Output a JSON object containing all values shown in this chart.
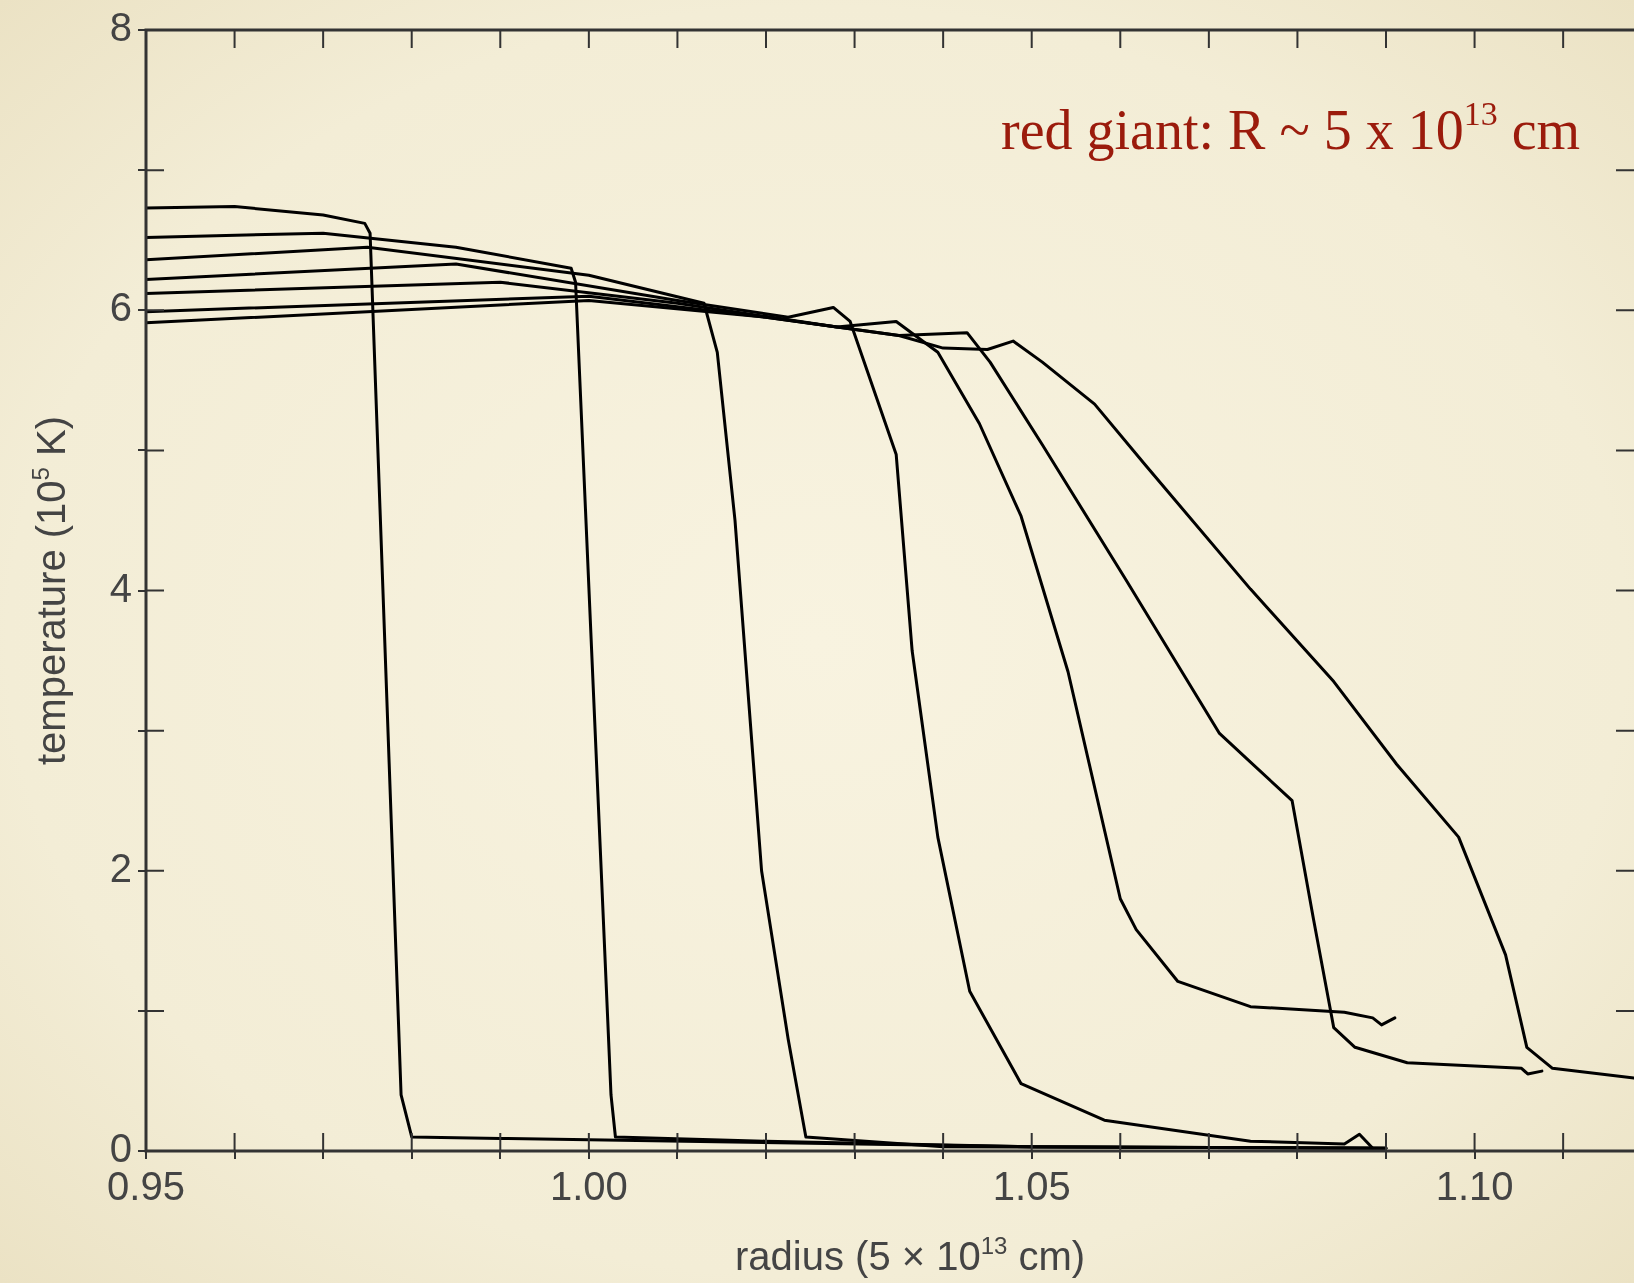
{
  "chart_data": {
    "type": "line",
    "xlabel": "radius (5 × 10$^{13}$ cm)",
    "ylabel": "temperature (10$^{5}$ K)",
    "annotations": [
      "red giant: R ~ 5 x 10$^{13}$ cm"
    ],
    "xlim": [
      0.95,
      1.118
    ],
    "ylim": [
      0,
      8
    ],
    "xticks": [
      {
        "value": 0.95,
        "label": "0.95"
      },
      {
        "value": 0.96,
        "label": null
      },
      {
        "value": 0.97,
        "label": null
      },
      {
        "value": 0.98,
        "label": null
      },
      {
        "value": 0.99,
        "label": null
      },
      {
        "value": 1.0,
        "label": "1.00"
      },
      {
        "value": 1.01,
        "label": null
      },
      {
        "value": 1.02,
        "label": null
      },
      {
        "value": 1.03,
        "label": null
      },
      {
        "value": 1.04,
        "label": null
      },
      {
        "value": 1.05,
        "label": "1.05"
      },
      {
        "value": 1.06,
        "label": null
      },
      {
        "value": 1.07,
        "label": null
      },
      {
        "value": 1.08,
        "label": null
      },
      {
        "value": 1.09,
        "label": null
      },
      {
        "value": 1.1,
        "label": "1.10"
      },
      {
        "value": 1.11,
        "label": null
      }
    ],
    "yticks": [
      0,
      {
        "value": 1,
        "label": null
      },
      2,
      {
        "value": 3,
        "label": null
      },
      4,
      {
        "value": 5,
        "label": null
      },
      6,
      {
        "value": 7,
        "label": null
      },
      8
    ],
    "grid": false,
    "legend": false,
    "marker": "none",
    "line_style": "solid",
    "series": [
      {
        "color": "#000000",
        "x": [
          0.95,
          0.96,
          0.97,
          0.9747,
          0.9753,
          0.9788,
          0.98,
          0.99,
          1.0,
          1.05,
          1.09
        ],
        "values": [
          6.73,
          6.74,
          6.68,
          6.62,
          6.55,
          0.4,
          0.1,
          0.09,
          0.08,
          0.03,
          0.02
        ]
      },
      {
        "color": "#000000",
        "x": [
          0.95,
          0.97,
          0.985,
          0.998,
          0.9985,
          1.0025,
          1.003,
          1.02,
          1.05,
          1.09
        ],
        "values": [
          6.52,
          6.55,
          6.45,
          6.3,
          6.2,
          0.4,
          0.1,
          0.07,
          0.03,
          0.02
        ]
      },
      {
        "color": "#000000",
        "x": [
          0.95,
          0.975,
          1.0,
          1.013,
          1.0145,
          1.0165,
          1.0195,
          1.0225,
          1.0245,
          1.04,
          1.09
        ],
        "values": [
          6.36,
          6.45,
          6.25,
          6.05,
          5.7,
          4.5,
          2.0,
          0.8,
          0.1,
          0.03,
          0.02
        ]
      },
      {
        "color": "#000000",
        "x": [
          0.95,
          0.985,
          1.01,
          1.0225,
          1.0276,
          1.0295,
          1.0347,
          1.0365,
          1.0394,
          1.043,
          1.0488,
          1.0582,
          1.0747,
          1.0853,
          1.087,
          1.0885
        ],
        "values": [
          6.22,
          6.33,
          6.07,
          5.95,
          6.02,
          5.92,
          4.97,
          3.57,
          2.24,
          1.14,
          0.48,
          0.22,
          0.07,
          0.05,
          0.12,
          0.02
        ]
      },
      {
        "color": "#000000",
        "x": [
          0.95,
          0.99,
          1.01,
          1.028,
          1.0347,
          1.0394,
          1.0441,
          1.0488,
          1.0541,
          1.06,
          1.0618,
          1.0665,
          1.0747,
          1.0853,
          1.0885,
          1.0895,
          1.091
        ],
        "values": [
          6.12,
          6.2,
          6.05,
          5.88,
          5.92,
          5.7,
          5.19,
          4.53,
          3.42,
          1.8,
          1.58,
          1.21,
          1.03,
          0.99,
          0.95,
          0.9,
          0.95
        ]
      },
      {
        "color": "#000000",
        "x": [
          0.95,
          1.0,
          1.02,
          1.035,
          1.0427,
          1.0453,
          1.0512,
          1.0606,
          1.0712,
          1.0794,
          1.0818,
          1.0841,
          1.0865,
          1.0924,
          1.1053,
          1.106,
          1.1076
        ],
        "values": [
          5.99,
          6.1,
          5.95,
          5.82,
          5.84,
          5.63,
          5.04,
          4.08,
          2.98,
          2.5,
          1.66,
          0.88,
          0.74,
          0.63,
          0.59,
          0.55,
          0.57
        ]
      },
      {
        "color": "#000000",
        "x": [
          0.95,
          1.0,
          1.02,
          1.035,
          1.04,
          1.045,
          1.0479,
          1.0512,
          1.0571,
          1.0629,
          1.0747,
          1.0841,
          1.0912,
          1.0982,
          1.1035,
          1.1059,
          1.1088,
          1.118
        ],
        "values": [
          5.91,
          6.07,
          5.95,
          5.82,
          5.73,
          5.72,
          5.78,
          5.63,
          5.33,
          4.89,
          4.01,
          3.35,
          2.76,
          2.24,
          1.4,
          0.74,
          0.59,
          0.52
        ]
      }
    ]
  }
}
